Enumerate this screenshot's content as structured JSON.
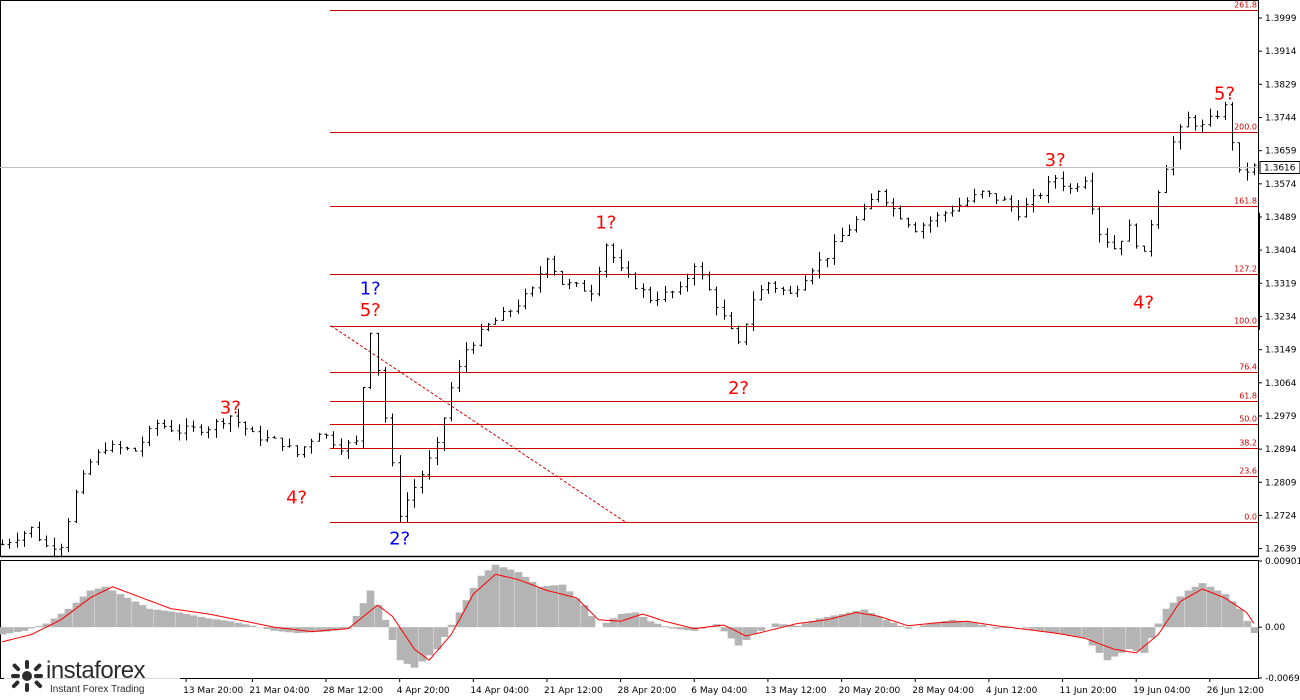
{
  "chart_data": [
    {
      "type": "candlestick",
      "title": "",
      "price_axis": {
        "ticks": [
          "1.3999",
          "1.3914",
          "1.3829",
          "1.3744",
          "1.3659",
          "1.3574",
          "1.3489",
          "1.3404",
          "1.3319",
          "1.3234",
          "1.3149",
          "1.3064",
          "1.2979",
          "1.2894",
          "1.2809",
          "1.2724",
          "1.2639"
        ],
        "range": [
          1.262,
          1.404
        ]
      },
      "current_price": "1.3616",
      "fibonacci_levels": [
        {
          "label": "261.8",
          "value": 1.402
        },
        {
          "label": "200.0",
          "value": 1.3707
        },
        {
          "label": "161.8",
          "value": 1.3517
        },
        {
          "label": "127.2",
          "value": 1.3342
        },
        {
          "label": "100.0",
          "value": 1.321
        },
        {
          "label": "76.4",
          "value": 1.3091
        },
        {
          "label": "61.8",
          "value": 1.3018
        },
        {
          "label": "50.0",
          "value": 1.2958
        },
        {
          "label": "38.2",
          "value": 1.2898
        },
        {
          "label": "23.6",
          "value": 1.2825
        },
        {
          "label": "0.0",
          "value": 1.2706
        }
      ],
      "wave_labels": [
        {
          "text": "1?",
          "color": "#0000ff",
          "date_index": 50,
          "price": 1.329
        },
        {
          "text": "5?",
          "color": "#ff0000",
          "date_index": 50,
          "price": 1.3235
        },
        {
          "text": "2?",
          "color": "#0000ff",
          "date_index": 54,
          "price": 1.265
        },
        {
          "text": "3?",
          "color": "#ff0000",
          "date_index": 31,
          "price": 1.2985
        },
        {
          "text": "4?",
          "color": "#ff0000",
          "date_index": 40,
          "price": 1.2755
        },
        {
          "text": "1?",
          "color": "#ff0000",
          "date_index": 82,
          "price": 1.346
        },
        {
          "text": "2?",
          "color": "#ff0000",
          "date_index": 100,
          "price": 1.3035
        },
        {
          "text": "3?",
          "color": "#ff0000",
          "date_index": 143,
          "price": 1.362
        },
        {
          "text": "4?",
          "color": "#ff0000",
          "date_index": 155,
          "price": 1.3255
        },
        {
          "text": "5?",
          "color": "#ff0000",
          "date_index": 166,
          "price": 1.379
        }
      ],
      "price_path": [
        [
          0,
          1.265
        ],
        [
          4,
          1.269
        ],
        [
          6,
          1.2645
        ],
        [
          8,
          1.265
        ],
        [
          10,
          1.278
        ],
        [
          12,
          1.286
        ],
        [
          14,
          1.29
        ],
        [
          18,
          1.289
        ],
        [
          21,
          1.296
        ],
        [
          24,
          1.294
        ],
        [
          28,
          1.295
        ],
        [
          31,
          1.298
        ],
        [
          34,
          1.293
        ],
        [
          38,
          1.291
        ],
        [
          40,
          1.288
        ],
        [
          43,
          1.294
        ],
        [
          46,
          1.29
        ],
        [
          48,
          1.291
        ],
        [
          50,
          1.32
        ],
        [
          51,
          1.31
        ],
        [
          53,
          1.285
        ],
        [
          54,
          1.273
        ],
        [
          57,
          1.283
        ],
        [
          59,
          1.29
        ],
        [
          61,
          1.305
        ],
        [
          63,
          1.315
        ],
        [
          66,
          1.321
        ],
        [
          69,
          1.325
        ],
        [
          72,
          1.33
        ],
        [
          74,
          1.339
        ],
        [
          76,
          1.332
        ],
        [
          80,
          1.33
        ],
        [
          82,
          1.342
        ],
        [
          84,
          1.335
        ],
        [
          88,
          1.328
        ],
        [
          92,
          1.33
        ],
        [
          94,
          1.337
        ],
        [
          96,
          1.33
        ],
        [
          98,
          1.323
        ],
        [
          100,
          1.316
        ],
        [
          102,
          1.328
        ],
        [
          104,
          1.332
        ],
        [
          107,
          1.329
        ],
        [
          110,
          1.336
        ],
        [
          112,
          1.339
        ],
        [
          114,
          1.344
        ],
        [
          117,
          1.35
        ],
        [
          119,
          1.356
        ],
        [
          121,
          1.351
        ],
        [
          124,
          1.346
        ],
        [
          127,
          1.349
        ],
        [
          130,
          1.352
        ],
        [
          133,
          1.355
        ],
        [
          136,
          1.353
        ],
        [
          138,
          1.35
        ],
        [
          141,
          1.355
        ],
        [
          143,
          1.359
        ],
        [
          145,
          1.356
        ],
        [
          147,
          1.359
        ],
        [
          149,
          1.345
        ],
        [
          151,
          1.341
        ],
        [
          153,
          1.346
        ],
        [
          155,
          1.339
        ],
        [
          157,
          1.356
        ],
        [
          159,
          1.368
        ],
        [
          161,
          1.374
        ],
        [
          163,
          1.372
        ],
        [
          166,
          1.377
        ],
        [
          168,
          1.36
        ],
        [
          170,
          1.3616
        ]
      ],
      "time_axis": {
        "ticks": [
          "13 Mar 20:00",
          "21 Mar 04:00",
          "28 Mar 12:00",
          "4 Apr 20:00",
          "14 Apr 04:00",
          "21 Apr 12:00",
          "28 Apr 20:00",
          "6 May 04:00",
          "13 May 12:00",
          "20 May 20:00",
          "28 May 04:00",
          "4 Jun 12:00",
          "11 Jun 20:00",
          "19 Jun 04:00",
          "26 Jun 12:00"
        ],
        "tick_indices": [
          25,
          34,
          44,
          54,
          64,
          74,
          84,
          94,
          104,
          114,
          124,
          134,
          144,
          154,
          164
        ],
        "bars": 171
      }
    },
    {
      "type": "histogram",
      "indicator": "MACD",
      "y_axis": {
        "ticks": [
          "0.00901",
          "0.00",
          "-0.00692"
        ],
        "range": [
          -0.00692,
          0.00901
        ]
      },
      "histogram_path": [
        [
          0,
          -0.001
        ],
        [
          3,
          -0.0005
        ],
        [
          6,
          0.0005
        ],
        [
          9,
          0.0025
        ],
        [
          12,
          0.005
        ],
        [
          14,
          0.0055
        ],
        [
          17,
          0.004
        ],
        [
          20,
          0.0025
        ],
        [
          24,
          0.002
        ],
        [
          28,
          0.0012
        ],
        [
          31,
          0.0008
        ],
        [
          34,
          0.0002
        ],
        [
          37,
          -0.0005
        ],
        [
          40,
          -0.0008
        ],
        [
          44,
          -0.0006
        ],
        [
          47,
          -0.0002
        ],
        [
          50,
          0.005
        ],
        [
          52,
          0.001
        ],
        [
          54,
          -0.0045
        ],
        [
          56,
          -0.0055
        ],
        [
          59,
          -0.003
        ],
        [
          62,
          0.002
        ],
        [
          65,
          0.007
        ],
        [
          67,
          0.0085
        ],
        [
          70,
          0.0075
        ],
        [
          73,
          0.0055
        ],
        [
          76,
          0.0058
        ],
        [
          79,
          0.003
        ],
        [
          81,
          0.0
        ],
        [
          84,
          0.0018
        ],
        [
          86,
          0.002
        ],
        [
          88,
          0.0008
        ],
        [
          91,
          -0.0002
        ],
        [
          94,
          -0.0005
        ],
        [
          97,
          0.0004
        ],
        [
          100,
          -0.0025
        ],
        [
          102,
          -0.001
        ],
        [
          105,
          0.0005
        ],
        [
          108,
          0.0002
        ],
        [
          111,
          0.0012
        ],
        [
          114,
          0.0018
        ],
        [
          117,
          0.0024
        ],
        [
          120,
          0.001
        ],
        [
          123,
          -0.0002
        ],
        [
          126,
          0.0005
        ],
        [
          129,
          0.001
        ],
        [
          132,
          0.0006
        ],
        [
          135,
          -0.0002
        ],
        [
          138,
          0.0
        ],
        [
          141,
          -0.0005
        ],
        [
          144,
          -0.001
        ],
        [
          147,
          -0.0015
        ],
        [
          150,
          -0.0045
        ],
        [
          153,
          -0.003
        ],
        [
          155,
          -0.0035
        ],
        [
          158,
          0.0025
        ],
        [
          161,
          0.005
        ],
        [
          163,
          0.006
        ],
        [
          166,
          0.0045
        ],
        [
          168,
          0.0025
        ],
        [
          170,
          -0.0008
        ]
      ],
      "signal_path": [
        [
          0,
          -0.002
        ],
        [
          4,
          -0.001
        ],
        [
          8,
          0.001
        ],
        [
          12,
          0.004
        ],
        [
          15,
          0.0055
        ],
        [
          19,
          0.004
        ],
        [
          23,
          0.0025
        ],
        [
          28,
          0.0018
        ],
        [
          33,
          0.0008
        ],
        [
          37,
          0.0
        ],
        [
          42,
          -0.0006
        ],
        [
          47,
          -0.0002
        ],
        [
          51,
          0.003
        ],
        [
          53,
          0.0015
        ],
        [
          56,
          -0.003
        ],
        [
          58,
          -0.0045
        ],
        [
          61,
          -0.001
        ],
        [
          64,
          0.0045
        ],
        [
          67,
          0.0072
        ],
        [
          70,
          0.0065
        ],
        [
          74,
          0.005
        ],
        [
          78,
          0.004
        ],
        [
          81,
          0.001
        ],
        [
          84,
          0.0008
        ],
        [
          87,
          0.0018
        ],
        [
          90,
          0.0008
        ],
        [
          94,
          -0.0002
        ],
        [
          98,
          0.0003
        ],
        [
          101,
          -0.0012
        ],
        [
          104,
          -0.0005
        ],
        [
          108,
          0.0005
        ],
        [
          112,
          0.001
        ],
        [
          116,
          0.002
        ],
        [
          119,
          0.0015
        ],
        [
          123,
          0.0002
        ],
        [
          127,
          0.0006
        ],
        [
          131,
          0.0008
        ],
        [
          135,
          0.0002
        ],
        [
          139,
          -0.0003
        ],
        [
          143,
          -0.0008
        ],
        [
          147,
          -0.0015
        ],
        [
          151,
          -0.003
        ],
        [
          154,
          -0.0035
        ],
        [
          157,
          -0.001
        ],
        [
          160,
          0.0035
        ],
        [
          163,
          0.0052
        ],
        [
          166,
          0.004
        ],
        [
          169,
          0.002
        ],
        [
          170,
          0.0005
        ]
      ]
    }
  ],
  "watermark": {
    "brand": "instaforex",
    "tagline": "Instant Forex Trading"
  },
  "colors": {
    "bars": "#000000",
    "fib_lines": "#d00000",
    "histogram": "#b4b4b4",
    "signal": "#ff0000",
    "wave_red": "#ff0000",
    "wave_blue": "#0000ff"
  }
}
